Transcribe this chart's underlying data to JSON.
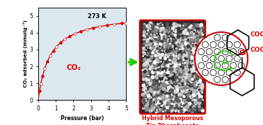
{
  "xlabel": "Pressure (bar)",
  "ylabel": "CO₂ adsorbed (mmolg⁻¹)",
  "xlim": [
    0,
    5
  ],
  "ylim": [
    0,
    5.5
  ],
  "xticks": [
    0,
    1,
    2,
    3,
    4,
    5
  ],
  "yticks": [
    0,
    1,
    2,
    3,
    4,
    5
  ],
  "curve_color": "#dd0000",
  "label_273K": "273 K",
  "label_CO2": "CO₂",
  "arrow_color": "#22cc00",
  "text_hybrid": "Hybrid Mesoporous\nTin Phosphonate",
  "text_hybrid_color": "#dd0000",
  "o2_color": "#22cc00",
  "cooh_color": "#dd0000",
  "bg_color": "#ffffff",
  "plot_bg": "#dce8f0",
  "qmax": 5.2,
  "K": 1.5
}
